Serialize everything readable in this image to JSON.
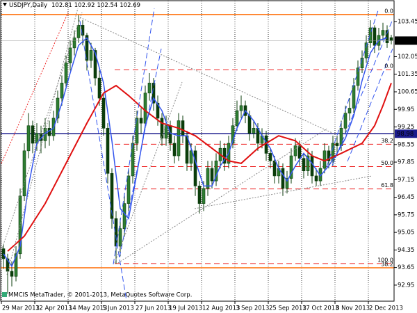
{
  "chart_data": {
    "type": "candlestick",
    "symbol": "USDJPY,Daily",
    "footer": "MMCIS MetaTrader, © 2001-2013, MetaQuotes Software Corp.",
    "categories": [
      "29 Mar 2013",
      null,
      null,
      null,
      null,
      null,
      null,
      null,
      "12 Apr 2013",
      null,
      null,
      null,
      null,
      null,
      null,
      null,
      "14 May 2013",
      null,
      null,
      null,
      null,
      null,
      null,
      null,
      "5 Jun 2013",
      null,
      null,
      null,
      null,
      null,
      null,
      null,
      "27 Jun 2013",
      null,
      null,
      null,
      null,
      null,
      null,
      null,
      "19 Jul 2013",
      null,
      null,
      null,
      null,
      null,
      null,
      null,
      "12 Aug 2013",
      null,
      null,
      null,
      null,
      null,
      null,
      null,
      "3 Sep 2013",
      null,
      null,
      null,
      null,
      null,
      null,
      null,
      "25 Sep 2013",
      null,
      null,
      null,
      null,
      null,
      null,
      null,
      "17 Oct 2013",
      null,
      null,
      null,
      null,
      null,
      null,
      null,
      "8 Nov 2013",
      null,
      null,
      null,
      null,
      null,
      null,
      null,
      "2 Dec 2013",
      null,
      null,
      null,
      null,
      null
    ],
    "open": [
      94.4,
      94.0,
      93.5,
      93.3,
      94.2,
      96.5,
      98.3,
      99.3,
      98.6,
      99.0,
      98.7,
      99.2,
      98.9,
      99.6,
      100.4,
      101.0,
      101.8,
      102.4,
      102.8,
      103.3,
      102.9,
      101.9,
      102.3,
      101.2,
      100.4,
      99.2,
      97.4,
      95.6,
      94.5,
      95.2,
      96.2,
      97.3,
      98.6,
      99.6,
      99.4,
      100.6,
      101.0,
      100.2,
      99.6,
      98.8,
      99.3,
      98.6,
      98.1,
      99.5,
      98.9,
      97.8,
      98.3,
      96.9,
      96.2,
      96.8,
      97.6,
      97.1,
      97.9,
      98.4,
      97.8,
      98.6,
      99.3,
      99.9,
      100.1,
      99.7,
      99.0,
      99.2,
      98.6,
      98.9,
      98.2,
      97.9,
      97.3,
      97.6,
      96.8,
      97.2,
      98.1,
      98.5,
      98.0,
      97.5,
      98.1,
      97.3,
      97.1,
      97.6,
      98.3,
      97.9,
      98.6,
      98.5,
      99.2,
      99.8,
      100.0,
      100.9,
      101.6,
      102.0,
      102.6,
      103.2,
      102.5,
      102.9,
      103.1,
      102.81
    ],
    "high": [
      94.6,
      94.2,
      93.9,
      94.5,
      96.8,
      98.6,
      99.8,
      99.5,
      99.4,
      99.3,
      99.6,
      99.5,
      99.9,
      100.7,
      101.3,
      102.1,
      102.7,
      103.1,
      103.7,
      103.5,
      103.0,
      102.6,
      102.4,
      101.5,
      100.6,
      99.4,
      97.6,
      95.9,
      95.6,
      96.6,
      97.6,
      98.9,
      99.9,
      100.0,
      100.9,
      101.4,
      101.2,
      100.5,
      99.8,
      99.7,
      99.5,
      98.9,
      99.8,
      99.7,
      99.1,
      98.6,
      98.5,
      97.1,
      97.1,
      97.9,
      97.9,
      98.2,
      98.7,
      98.6,
      98.9,
      99.6,
      100.3,
      100.5,
      100.3,
      99.9,
      99.5,
      99.4,
      99.2,
      99.1,
      98.4,
      98.1,
      97.9,
      97.8,
      97.5,
      98.4,
      98.8,
      98.7,
      98.2,
      98.4,
      98.3,
      97.6,
      97.9,
      98.6,
      98.5,
      98.9,
      98.9,
      99.5,
      100.1,
      100.4,
      101.2,
      101.9,
      102.3,
      102.9,
      103.5,
      103.3,
      103.2,
      103.4,
      103.3,
      102.92
    ],
    "low": [
      93.6,
      92.6,
      92.9,
      93.1,
      94.0,
      96.3,
      98.0,
      98.2,
      98.3,
      98.2,
      98.4,
      98.5,
      98.7,
      99.4,
      100.1,
      100.8,
      101.5,
      102.1,
      102.6,
      102.5,
      101.5,
      101.6,
      100.9,
      100.1,
      98.9,
      97.0,
      95.2,
      93.8,
      94.1,
      94.9,
      95.9,
      97.0,
      98.3,
      99.0,
      99.2,
      100.3,
      99.9,
      99.3,
      98.5,
      98.5,
      98.3,
      97.8,
      97.9,
      98.6,
      97.5,
      97.5,
      96.5,
      95.8,
      95.9,
      96.5,
      96.8,
      96.9,
      97.6,
      97.5,
      97.6,
      98.4,
      99.1,
      99.6,
      99.4,
      98.7,
      98.8,
      98.3,
      98.4,
      97.9,
      97.6,
      97.0,
      97.0,
      96.5,
      96.6,
      97.0,
      97.9,
      97.7,
      97.2,
      97.3,
      97.0,
      96.9,
      96.9,
      97.4,
      97.6,
      97.7,
      98.2,
      98.3,
      99.0,
      99.5,
      99.8,
      100.7,
      101.4,
      101.8,
      102.4,
      102.2,
      102.3,
      102.7,
      102.4,
      102.54
    ],
    "close": [
      94.0,
      93.5,
      93.3,
      94.2,
      96.5,
      98.3,
      99.3,
      98.6,
      99.0,
      98.7,
      99.2,
      98.9,
      99.6,
      100.4,
      101.0,
      101.8,
      102.4,
      102.8,
      103.3,
      102.9,
      101.9,
      102.3,
      101.2,
      100.4,
      99.2,
      97.4,
      95.6,
      94.5,
      95.2,
      96.2,
      97.3,
      98.6,
      99.6,
      99.4,
      100.6,
      101.0,
      100.2,
      99.6,
      98.8,
      99.3,
      98.6,
      98.1,
      99.5,
      98.9,
      97.8,
      98.3,
      96.9,
      96.2,
      96.8,
      97.6,
      97.1,
      97.9,
      98.4,
      97.8,
      98.6,
      99.3,
      99.9,
      100.1,
      99.7,
      99.0,
      99.2,
      98.6,
      98.9,
      98.2,
      97.9,
      97.3,
      97.6,
      96.8,
      97.2,
      98.1,
      98.5,
      98.0,
      97.5,
      98.1,
      97.3,
      97.1,
      97.6,
      98.3,
      97.9,
      98.6,
      98.5,
      99.2,
      99.8,
      100.0,
      100.9,
      101.6,
      102.0,
      102.6,
      103.2,
      102.5,
      102.9,
      103.1,
      102.6,
      102.69
    ],
    "up_color": "#2e7d32",
    "down_color": "#0b3d0b",
    "wick_color": "#0b3d0b",
    "ylim": [
      92.31,
      104.28
    ],
    "yticks": [
      103.45,
      102.05,
      101.35,
      100.65,
      99.95,
      99.25,
      98.55,
      97.85,
      97.15,
      96.45,
      95.75,
      95.05,
      94.35,
      93.65,
      92.95
    ],
    "grid": true,
    "overlays": [
      {
        "color": "#3355ee",
        "x": [
          0,
          2,
          4,
          6,
          8,
          10,
          12,
          14,
          16,
          18,
          20,
          22,
          24,
          26,
          28,
          30,
          32,
          34,
          36,
          38,
          40,
          42,
          44,
          46,
          48,
          50,
          52,
          54,
          56,
          58,
          60,
          62,
          64,
          66,
          68,
          70,
          72,
          74,
          76,
          78,
          80,
          82,
          84,
          86,
          88,
          90,
          92
        ],
        "values": [
          94.2,
          93.7,
          94.5,
          96.9,
          98.6,
          99.0,
          99.2,
          100.2,
          101.4,
          102.5,
          102.8,
          102.2,
          101.0,
          98.7,
          96.0,
          95.6,
          97.4,
          99.3,
          100.4,
          99.9,
          99.0,
          98.9,
          98.9,
          97.9,
          96.9,
          96.9,
          97.7,
          98.2,
          99.2,
          99.9,
          99.5,
          98.9,
          98.4,
          97.6,
          97.1,
          97.7,
          98.2,
          97.8,
          97.3,
          97.7,
          98.2,
          98.8,
          99.7,
          101.1,
          102.2,
          102.7,
          102.8
        ]
      },
      {
        "color": "#e01010",
        "x": [
          1,
          5,
          10,
          15,
          20,
          24,
          27,
          30,
          34,
          38,
          42,
          46,
          50,
          54,
          57,
          61,
          66,
          70,
          74,
          77,
          81,
          86,
          89,
          91,
          93
        ],
        "values": [
          94.3,
          94.9,
          96.2,
          97.8,
          99.4,
          100.6,
          100.9,
          100.5,
          99.9,
          99.4,
          99.2,
          98.9,
          98.4,
          97.9,
          97.8,
          98.4,
          98.9,
          98.7,
          98.1,
          97.9,
          98.2,
          98.6,
          99.3,
          100.1,
          101.0
        ]
      }
    ],
    "hlines": [
      {
        "value": 98.98,
        "color": "#1a1a8c"
      }
    ],
    "levels": [
      {
        "label": "0.0",
        "value": 103.73,
        "color": "#ff6a00",
        "dashed": false
      },
      {
        "label": "0.0",
        "value": 101.53,
        "color": "#ee2222",
        "dashed": true
      },
      {
        "label": "38.2",
        "value": 98.56,
        "color": "#ee2222",
        "dashed": true
      },
      {
        "label": "50.0",
        "value": 97.67,
        "color": "#ee2222",
        "dashed": true
      },
      {
        "label": "61.8",
        "value": 96.78,
        "color": "#ee2222",
        "dashed": true
      },
      {
        "label": "100.0",
        "value": 93.81,
        "color": "#ee2222",
        "dashed": true
      },
      {
        "label": "38.2",
        "value": 93.64,
        "color": "#ff6a00",
        "dashed": false
      }
    ]
  }
}
